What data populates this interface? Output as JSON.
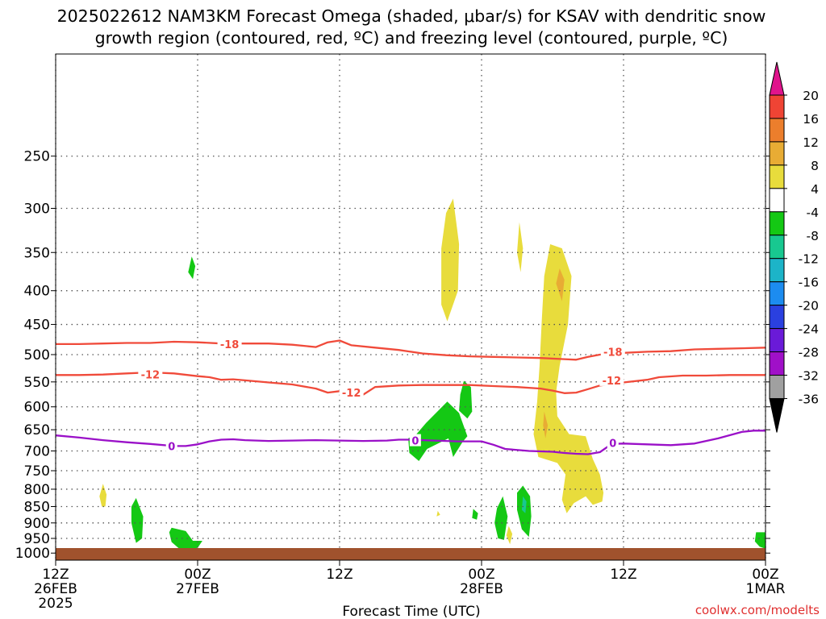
{
  "title": {
    "line1": "2025022612 NAM3KM Forecast Omega (shaded, μbar/s) for KSAV with dendritic snow",
    "line2": "growth region (contoured, red, ºC) and freezing level (contoured, purple, ºC)"
  },
  "credit": "coolwx.com/modelts",
  "colors": {
    "dgz_contour": "#f04a3a",
    "freezing_contour": "#9a10c8",
    "ground": "#a0522d",
    "grid": "#555555"
  },
  "chart_data": {
    "type": "heatmap",
    "x_axis": {
      "label": "Forecast Time (UTC)",
      "range_hours": [
        0,
        60
      ],
      "ticks": [
        {
          "hour": 0,
          "lines": [
            "12Z",
            "26FEB",
            "2025"
          ]
        },
        {
          "hour": 12,
          "lines": [
            "00Z",
            "27FEB"
          ]
        },
        {
          "hour": 24,
          "lines": [
            "12Z"
          ]
        },
        {
          "hour": 36,
          "lines": [
            "00Z",
            "28FEB"
          ]
        },
        {
          "hour": 48,
          "lines": [
            "12Z"
          ]
        },
        {
          "hour": 60,
          "lines": [
            "00Z",
            "1MAR"
          ]
        }
      ]
    },
    "y_axis": {
      "unit": "hPa",
      "scale": "log-pressure",
      "range": [
        1025,
        175
      ],
      "ticks": [
        250,
        300,
        350,
        400,
        450,
        500,
        550,
        600,
        650,
        700,
        750,
        800,
        850,
        900,
        950,
        1000
      ]
    },
    "grid": true,
    "colorbar": {
      "placement": "right",
      "tick_labels": [
        "20",
        "16",
        "12",
        "8",
        "4",
        "-4",
        "-8",
        "-12",
        "-16",
        "-20",
        "-24",
        "-28",
        "-32",
        "-36"
      ],
      "bins": [
        {
          "range": [
            16,
            20
          ],
          "color": "#ef4434"
        },
        {
          "range": [
            12,
            16
          ],
          "color": "#ec7e2c"
        },
        {
          "range": [
            8,
            12
          ],
          "color": "#e8ac34"
        },
        {
          "range": [
            4,
            8
          ],
          "color": "#e8dc3c"
        },
        {
          "range": [
            -4,
            4
          ],
          "color": "#ffffff"
        },
        {
          "range": [
            -8,
            -4
          ],
          "color": "#14c814"
        },
        {
          "range": [
            -12,
            -8
          ],
          "color": "#18c890"
        },
        {
          "range": [
            -16,
            -12
          ],
          "color": "#1cb4c8"
        },
        {
          "range": [
            -20,
            -16
          ],
          "color": "#1c8cf0"
        },
        {
          "range": [
            -24,
            -20
          ],
          "color": "#2a40e0"
        },
        {
          "range": [
            -28,
            -24
          ],
          "color": "#6a1ad8"
        },
        {
          "range": [
            -32,
            -28
          ],
          "color": "#a010c8"
        },
        {
          "range": [
            -36,
            -32
          ],
          "color": "#a0a0a0"
        }
      ],
      "arrow_top_color": "#e0148c",
      "arrow_bottom_color": "#000000"
    },
    "contours": [
      {
        "name": "-18",
        "color": "#f04a3a",
        "labels": [
          {
            "t": 14.7,
            "p": 482
          },
          {
            "t": 47.1,
            "p": 495
          }
        ],
        "points": [
          [
            0,
            482
          ],
          [
            2,
            482
          ],
          [
            4,
            481
          ],
          [
            6,
            480
          ],
          [
            8,
            480
          ],
          [
            10,
            478
          ],
          [
            12,
            479
          ],
          [
            14,
            481
          ],
          [
            16,
            481
          ],
          [
            18,
            481
          ],
          [
            20,
            483
          ],
          [
            22,
            487
          ],
          [
            23,
            479
          ],
          [
            24,
            476
          ],
          [
            25,
            484
          ],
          [
            27,
            488
          ],
          [
            29,
            492
          ],
          [
            31,
            498
          ],
          [
            33,
            501
          ],
          [
            35,
            503
          ],
          [
            37,
            504
          ],
          [
            39,
            505
          ],
          [
            41,
            506
          ],
          [
            43,
            508
          ],
          [
            44,
            509
          ],
          [
            45,
            504
          ],
          [
            46,
            500
          ],
          [
            48,
            497
          ],
          [
            50,
            495
          ],
          [
            52,
            494
          ],
          [
            54,
            491
          ],
          [
            56,
            490
          ],
          [
            58,
            489
          ],
          [
            60,
            488
          ]
        ]
      },
      {
        "name": "-12",
        "color": "#f04a3a",
        "labels": [
          {
            "t": 8.0,
            "p": 536
          },
          {
            "t": 25.0,
            "p": 571
          },
          {
            "t": 47.0,
            "p": 547
          }
        ],
        "points": [
          [
            0,
            537
          ],
          [
            2,
            537
          ],
          [
            4,
            536
          ],
          [
            6,
            534
          ],
          [
            8,
            532
          ],
          [
            10,
            534
          ],
          [
            12,
            539
          ],
          [
            13,
            541
          ],
          [
            14,
            546
          ],
          [
            15,
            545
          ],
          [
            16,
            547
          ],
          [
            18,
            551
          ],
          [
            20,
            555
          ],
          [
            22,
            563
          ],
          [
            23,
            571
          ],
          [
            24,
            568
          ],
          [
            25,
            571
          ],
          [
            26,
            575
          ],
          [
            27,
            560
          ],
          [
            29,
            557
          ],
          [
            31,
            556
          ],
          [
            33,
            556
          ],
          [
            35,
            556
          ],
          [
            37,
            558
          ],
          [
            39,
            560
          ],
          [
            41,
            563
          ],
          [
            42,
            567
          ],
          [
            43,
            572
          ],
          [
            44,
            571
          ],
          [
            45,
            564
          ],
          [
            46,
            557
          ],
          [
            48,
            551
          ],
          [
            50,
            546
          ],
          [
            51,
            541
          ],
          [
            53,
            538
          ],
          [
            55,
            538
          ],
          [
            57,
            537
          ],
          [
            59,
            537
          ],
          [
            60,
            537
          ]
        ]
      },
      {
        "name": "0",
        "color": "#9a10c8",
        "labels": [
          {
            "t": 9.8,
            "p": 688
          },
          {
            "t": 30.4,
            "p": 675
          },
          {
            "t": 47.1,
            "p": 681
          }
        ],
        "points": [
          [
            0,
            663
          ],
          [
            2,
            668
          ],
          [
            4,
            674
          ],
          [
            6,
            679
          ],
          [
            8,
            683
          ],
          [
            10,
            688
          ],
          [
            11,
            688
          ],
          [
            12,
            684
          ],
          [
            13,
            677
          ],
          [
            14,
            673
          ],
          [
            15,
            672
          ],
          [
            16,
            674
          ],
          [
            18,
            676
          ],
          [
            20,
            675
          ],
          [
            22,
            674
          ],
          [
            24,
            675
          ],
          [
            26,
            676
          ],
          [
            28,
            675
          ],
          [
            29,
            673
          ],
          [
            30,
            673
          ],
          [
            32,
            675
          ],
          [
            34,
            677
          ],
          [
            36,
            677
          ],
          [
            37,
            685
          ],
          [
            38,
            695
          ],
          [
            40,
            700
          ],
          [
            42,
            702
          ],
          [
            43,
            705
          ],
          [
            44,
            707
          ],
          [
            45,
            708
          ],
          [
            46,
            703
          ],
          [
            47,
            683
          ],
          [
            48,
            682
          ],
          [
            50,
            684
          ],
          [
            52,
            686
          ],
          [
            54,
            682
          ],
          [
            56,
            670
          ],
          [
            58,
            655
          ],
          [
            59,
            652
          ],
          [
            60,
            652
          ]
        ]
      }
    ],
    "omega_regions": [
      {
        "sign": "negative",
        "level": "-4 to -8",
        "points": [
          [
            11.5,
            355
          ],
          [
            11.8,
            367
          ],
          [
            11.6,
            384
          ],
          [
            11.2,
            375
          ]
        ]
      },
      {
        "sign": "negative",
        "level": "-4 to -8",
        "points": [
          [
            6.8,
            825
          ],
          [
            7.4,
            880
          ],
          [
            7.3,
            950
          ],
          [
            6.8,
            965
          ],
          [
            6.4,
            900
          ],
          [
            6.4,
            850
          ]
        ]
      },
      {
        "sign": "negative",
        "level": "-4 to -8",
        "points": [
          [
            9.8,
            915
          ],
          [
            11.0,
            926
          ],
          [
            11.6,
            958
          ],
          [
            12.4,
            958
          ],
          [
            12.0,
            982
          ],
          [
            10.6,
            990
          ],
          [
            9.8,
            962
          ],
          [
            9.6,
            930
          ]
        ]
      },
      {
        "sign": "negative",
        "level": "-4 to -8",
        "points": [
          [
            33.1,
            589
          ],
          [
            34.1,
            613
          ],
          [
            34.8,
            665
          ],
          [
            34.4,
            678
          ],
          [
            33.6,
            715
          ],
          [
            33.2,
            670
          ],
          [
            31.4,
            695
          ],
          [
            30.7,
            725
          ],
          [
            29.9,
            705
          ],
          [
            29.8,
            670
          ],
          [
            30.5,
            660
          ],
          [
            31.3,
            635
          ]
        ]
      },
      {
        "sign": "negative",
        "level": "-4 to -8",
        "points": [
          [
            34.5,
            548
          ],
          [
            35.1,
            560
          ],
          [
            35.2,
            610
          ],
          [
            34.8,
            625
          ],
          [
            34.1,
            608
          ],
          [
            34.2,
            575
          ]
        ]
      },
      {
        "sign": "negative",
        "level": "-4 to -8",
        "points": [
          [
            35.3,
            857
          ],
          [
            35.7,
            870
          ],
          [
            35.6,
            890
          ],
          [
            35.2,
            885
          ]
        ]
      },
      {
        "sign": "negative",
        "level": "-4 to -8",
        "points": [
          [
            37.8,
            820
          ],
          [
            38.2,
            880
          ],
          [
            37.9,
            955
          ],
          [
            37.4,
            950
          ],
          [
            37.1,
            900
          ],
          [
            37.3,
            855
          ]
        ]
      },
      {
        "sign": "negative",
        "level": "-4 to -8",
        "points": [
          [
            39.5,
            790
          ],
          [
            40.1,
            820
          ],
          [
            40.2,
            880
          ],
          [
            40.0,
            945
          ],
          [
            39.4,
            920
          ],
          [
            39.0,
            860
          ],
          [
            39.0,
            810
          ]
        ]
      },
      {
        "sign": "negative",
        "level": "-8 to -12",
        "points": [
          [
            39.5,
            820
          ],
          [
            39.8,
            835
          ],
          [
            39.7,
            870
          ],
          [
            39.4,
            860
          ]
        ]
      },
      {
        "sign": "negative",
        "level": "-4 to -8",
        "points": [
          [
            59.2,
            930
          ],
          [
            60,
            930
          ],
          [
            60,
            985
          ],
          [
            59.5,
            978
          ],
          [
            59.1,
            960
          ]
        ]
      },
      {
        "sign": "positive",
        "level": "4 to 8",
        "points": [
          [
            4.0,
            785
          ],
          [
            4.3,
            815
          ],
          [
            4.2,
            850
          ],
          [
            3.9,
            850
          ],
          [
            3.7,
            820
          ]
        ]
      },
      {
        "sign": "positive",
        "level": "4 to 8",
        "points": [
          [
            33.6,
            290
          ],
          [
            34.1,
            340
          ],
          [
            34.0,
            400
          ],
          [
            33.1,
            445
          ],
          [
            32.6,
            420
          ],
          [
            32.6,
            345
          ],
          [
            33.0,
            305
          ]
        ]
      },
      {
        "sign": "positive",
        "level": "4 to 8",
        "points": [
          [
            39.2,
            315
          ],
          [
            39.5,
            345
          ],
          [
            39.3,
            375
          ],
          [
            39.0,
            350
          ]
        ]
      },
      {
        "sign": "positive",
        "level": "4 to 8",
        "points": [
          [
            32.3,
            863
          ],
          [
            32.5,
            875
          ],
          [
            32.2,
            880
          ]
        ]
      },
      {
        "sign": "positive",
        "level": "4 to 8",
        "points": [
          [
            38.3,
            910
          ],
          [
            38.6,
            935
          ],
          [
            38.4,
            970
          ],
          [
            38.1,
            940
          ]
        ]
      },
      {
        "sign": "positive",
        "level": "4 to 8",
        "points": [
          [
            41.8,
            340
          ],
          [
            42.8,
            345
          ],
          [
            43.6,
            380
          ],
          [
            43.3,
            450
          ],
          [
            42.6,
            520
          ],
          [
            42.3,
            570
          ],
          [
            42.4,
            620
          ],
          [
            43.4,
            660
          ],
          [
            44.8,
            665
          ],
          [
            45.4,
            720
          ],
          [
            46.0,
            760
          ],
          [
            46.3,
            810
          ],
          [
            46.2,
            835
          ],
          [
            45.4,
            845
          ],
          [
            44.8,
            820
          ],
          [
            43.8,
            840
          ],
          [
            43.2,
            870
          ],
          [
            42.8,
            830
          ],
          [
            43.1,
            760
          ],
          [
            42.4,
            730
          ],
          [
            40.8,
            715
          ],
          [
            40.4,
            660
          ],
          [
            40.7,
            590
          ],
          [
            40.9,
            520
          ],
          [
            41.1,
            440
          ],
          [
            41.3,
            380
          ]
        ]
      },
      {
        "sign": "positive",
        "level": "8 to 12",
        "points": [
          [
            42.6,
            370
          ],
          [
            43.0,
            385
          ],
          [
            42.8,
            415
          ],
          [
            42.3,
            390
          ]
        ]
      },
      {
        "sign": "positive",
        "level": "8 to 12",
        "points": [
          [
            41.3,
            610
          ],
          [
            41.6,
            640
          ],
          [
            41.4,
            670
          ],
          [
            41.2,
            640
          ]
        ]
      }
    ]
  }
}
